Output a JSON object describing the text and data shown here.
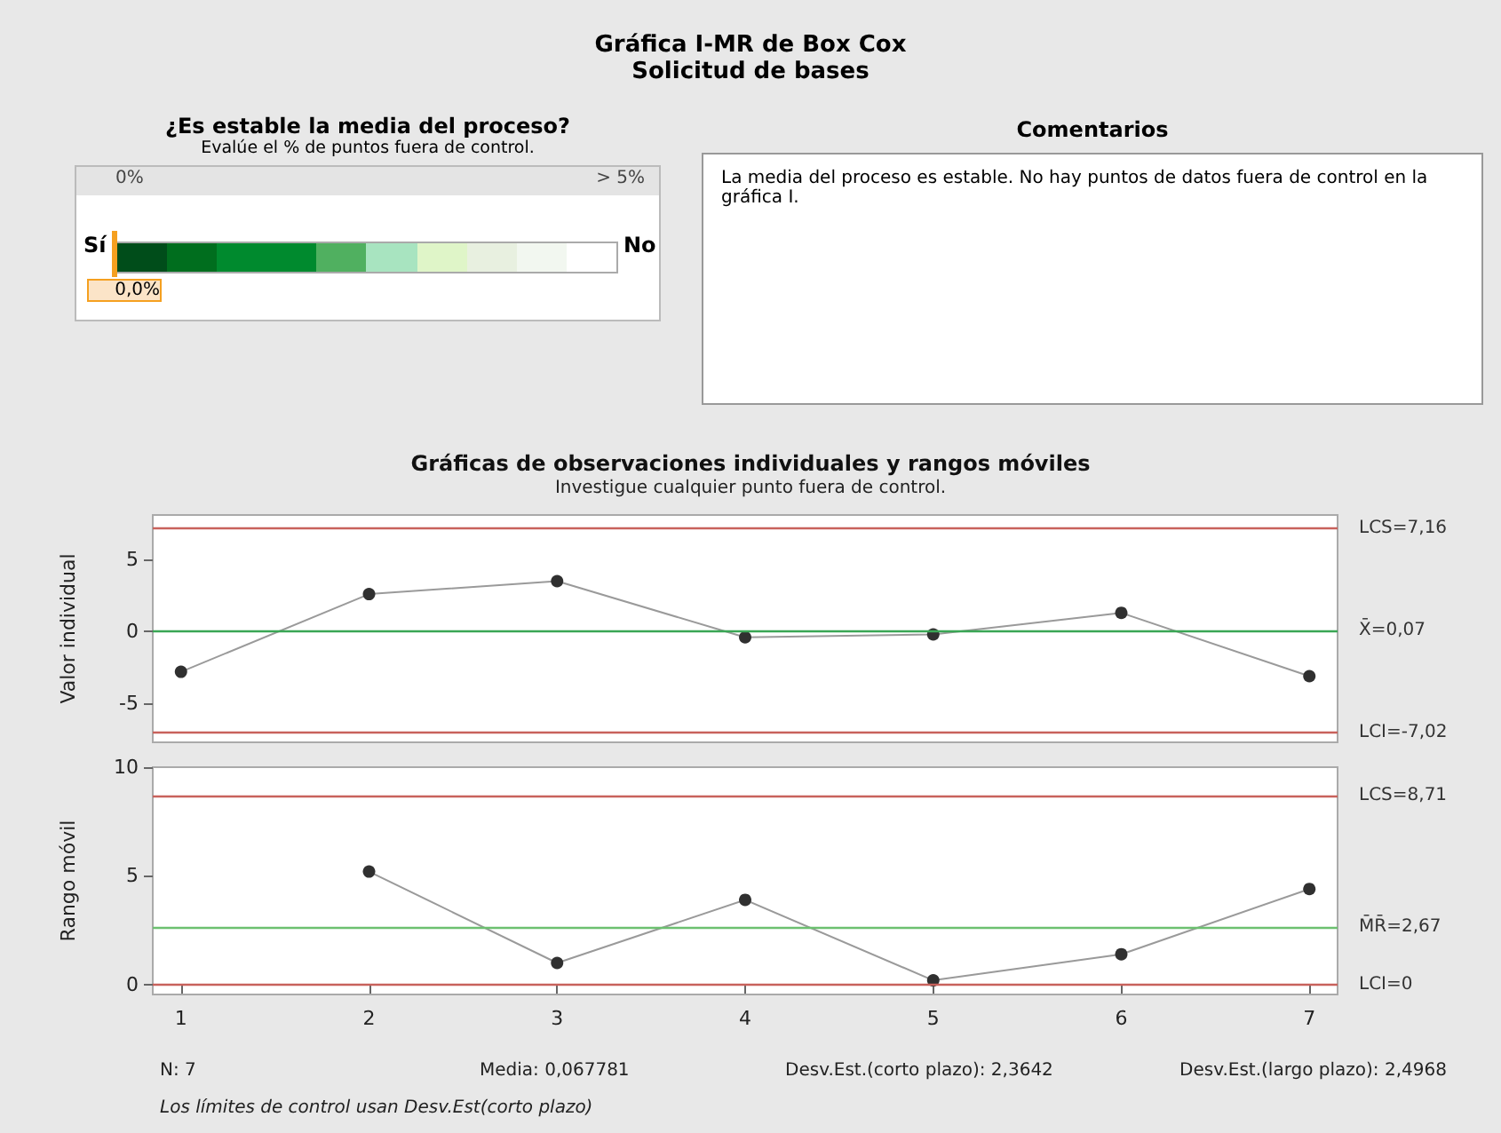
{
  "chart_data": [
    {
      "type": "other",
      "title": "Gráfica I-MR de Box Cox",
      "subtitle": "Solicitud de bases"
    },
    {
      "type": "other",
      "title": "¿Es estable la media del proceso?",
      "subtitle": "Evalúe el % de puntos fuera de control.",
      "annotations": [
        "0%",
        "> 5%",
        "Sí",
        "No",
        "0,0%"
      ]
    },
    {
      "type": "other",
      "title": "Comentarios",
      "annotations": [
        "La media del proceso es estable. No hay puntos de datos fuera de control en la gráfica I."
      ]
    },
    {
      "type": "line",
      "title": "Gráficas de observaciones individuales y rangos móviles",
      "subtitle": "Investigue cualquier punto fuera de control.",
      "ylabel": "Valor individual",
      "x": [
        1,
        2,
        3,
        4,
        5,
        6,
        7
      ],
      "xlim": [
        0.85,
        7.15
      ],
      "xticks": [
        1,
        2,
        3,
        4,
        5,
        6,
        7
      ],
      "ylim": [
        -7.7,
        8.1
      ],
      "yticks": [
        -5,
        0,
        5
      ],
      "tick_labels": "y",
      "grid": false,
      "marker": "circle",
      "line_style": "solid",
      "series": [
        {
          "color": "#303030",
          "values": [
            -2.8,
            2.6,
            3.5,
            -0.4,
            -0.2,
            1.3,
            -3.1
          ]
        }
      ],
      "ref_lines": [
        {
          "axis": "y",
          "value": 7.16,
          "label": "LCS=7,16",
          "color": "#c8625c"
        },
        {
          "axis": "y",
          "value": 0.07,
          "label": "X̄=0,07",
          "color": "#3aa655"
        },
        {
          "axis": "y",
          "value": -7.02,
          "label": "LCI=-7,02",
          "color": "#c8625c"
        }
      ]
    },
    {
      "type": "line",
      "ylabel": "Rango móvil",
      "xlim": [
        0.85,
        7.15
      ],
      "xticks": [
        1,
        2,
        3,
        4,
        5,
        6,
        7
      ],
      "ylim": [
        -0.45,
        10
      ],
      "yticks": [
        0,
        5,
        10
      ],
      "grid": false,
      "marker": "circle",
      "line_style": "solid",
      "series": [
        {
          "color": "#303030",
          "x": [
            2,
            3,
            4,
            5,
            6,
            7
          ],
          "values": [
            5.2,
            1.0,
            3.9,
            0.2,
            1.4,
            4.4
          ]
        }
      ],
      "ref_lines": [
        {
          "axis": "y",
          "value": 8.71,
          "label": "LCS=8,71",
          "color": "#c8625c"
        },
        {
          "axis": "y",
          "value": 2.67,
          "label": "M̄R̄=2,67",
          "color": "#6cc070"
        },
        {
          "axis": "y",
          "value": 0,
          "label": "LCI=0",
          "color": "#c8625c"
        }
      ],
      "annotations": [
        "N: 7",
        "Media: 0,067781",
        "Desv.Est.(corto plazo): 2,3642",
        "Desv.Est.(largo plazo): 2,4968",
        "Los límites de control usan Desv.Est(corto plazo)"
      ]
    }
  ]
}
